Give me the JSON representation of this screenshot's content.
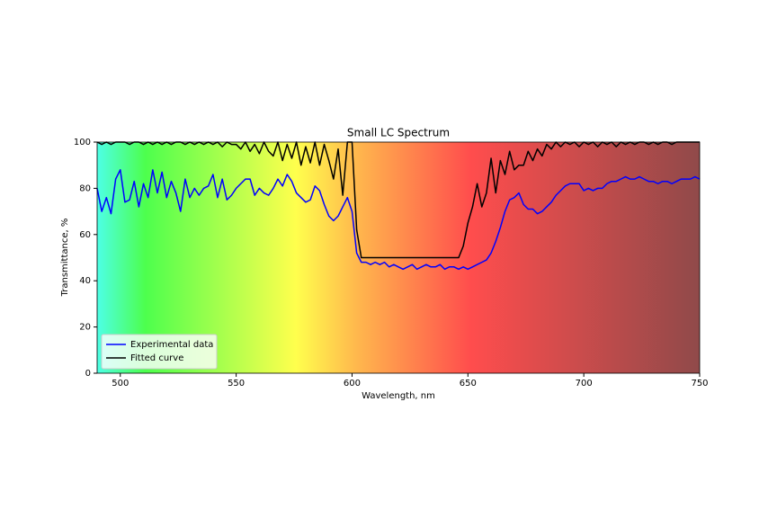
{
  "chart_data": {
    "type": "line",
    "title": "Small LC Spectrum",
    "x_label": "Wavelength, nm",
    "y_label": "Transmittance, %",
    "xlim": [
      490,
      750
    ],
    "ylim": [
      0,
      100
    ],
    "xticks": [
      500,
      550,
      600,
      650,
      700,
      750
    ],
    "yticks": [
      0,
      20,
      40,
      60,
      80,
      100
    ],
    "legend": "lower left",
    "x": [
      490,
      492,
      494,
      496,
      498,
      500,
      502,
      504,
      506,
      508,
      510,
      512,
      514,
      516,
      518,
      520,
      522,
      524,
      526,
      528,
      530,
      532,
      534,
      536,
      538,
      540,
      542,
      544,
      546,
      548,
      550,
      552,
      554,
      556,
      558,
      560,
      562,
      564,
      566,
      568,
      570,
      572,
      574,
      576,
      578,
      580,
      582,
      584,
      586,
      588,
      590,
      592,
      594,
      596,
      598,
      600,
      602,
      604,
      606,
      608,
      610,
      612,
      614,
      616,
      618,
      620,
      622,
      624,
      626,
      628,
      630,
      632,
      634,
      636,
      638,
      640,
      642,
      644,
      646,
      648,
      650,
      652,
      654,
      656,
      658,
      660,
      662,
      664,
      666,
      668,
      670,
      672,
      674,
      676,
      678,
      680,
      682,
      684,
      686,
      688,
      690,
      692,
      694,
      696,
      698,
      700,
      702,
      704,
      706,
      708,
      710,
      712,
      714,
      716,
      718,
      720,
      722,
      724,
      726,
      728,
      730,
      732,
      734,
      736,
      738,
      740,
      742,
      744,
      746,
      748,
      750
    ],
    "series": [
      {
        "name": "Experimental data",
        "color": "#0000ff",
        "values": [
          80,
          70,
          76,
          69,
          84,
          88,
          74,
          75,
          83,
          72,
          82,
          76,
          88,
          78,
          87,
          76,
          83,
          78,
          70,
          84,
          76,
          80,
          77,
          80,
          81,
          86,
          76,
          84,
          75,
          77,
          80,
          82,
          84,
          84,
          77,
          80,
          78,
          77,
          80,
          84,
          81,
          86,
          83,
          78,
          76,
          74,
          75,
          81,
          79,
          73,
          68,
          66,
          68,
          72,
          76,
          70,
          52,
          48,
          48,
          47,
          48,
          47,
          48,
          46,
          47,
          46,
          45,
          46,
          47,
          45,
          46,
          47,
          46,
          46,
          47,
          45,
          46,
          46,
          45,
          46,
          45,
          46,
          47,
          48,
          49,
          52,
          57,
          63,
          70,
          75,
          76,
          78,
          73,
          71,
          71,
          69,
          70,
          72,
          74,
          77,
          79,
          81,
          82,
          82,
          82,
          79,
          80,
          79,
          80,
          80,
          82,
          83,
          83,
          84,
          85,
          84,
          84,
          85,
          84,
          83,
          83,
          82,
          83,
          83,
          82,
          83,
          84,
          84,
          84,
          85,
          84
        ]
      },
      {
        "name": "Fitted curve",
        "color": "#000000",
        "values": [
          100,
          99,
          100,
          99,
          100,
          100,
          100,
          99,
          100,
          100,
          99,
          100,
          99,
          100,
          99,
          100,
          99,
          100,
          100,
          99,
          100,
          99,
          100,
          99,
          100,
          99,
          100,
          98,
          100,
          99,
          99,
          97,
          100,
          96,
          99,
          95,
          100,
          96,
          94,
          100,
          92,
          99,
          93,
          100,
          90,
          98,
          91,
          100,
          90,
          99,
          92,
          84,
          97,
          77,
          100,
          100,
          62,
          50,
          50,
          50,
          50,
          50,
          50,
          50,
          50,
          50,
          50,
          50,
          50,
          50,
          50,
          50,
          50,
          50,
          50,
          50,
          50,
          50,
          50,
          55,
          65,
          72,
          82,
          72,
          78,
          93,
          78,
          92,
          86,
          96,
          88,
          90,
          90,
          96,
          92,
          97,
          94,
          99,
          97,
          100,
          98,
          100,
          99,
          100,
          98,
          100,
          99,
          100,
          98,
          100,
          99,
          100,
          98,
          100,
          99,
          100,
          99,
          100,
          100,
          99,
          100,
          99,
          100,
          100,
          99,
          100,
          100,
          100,
          100,
          100,
          100
        ]
      }
    ]
  }
}
